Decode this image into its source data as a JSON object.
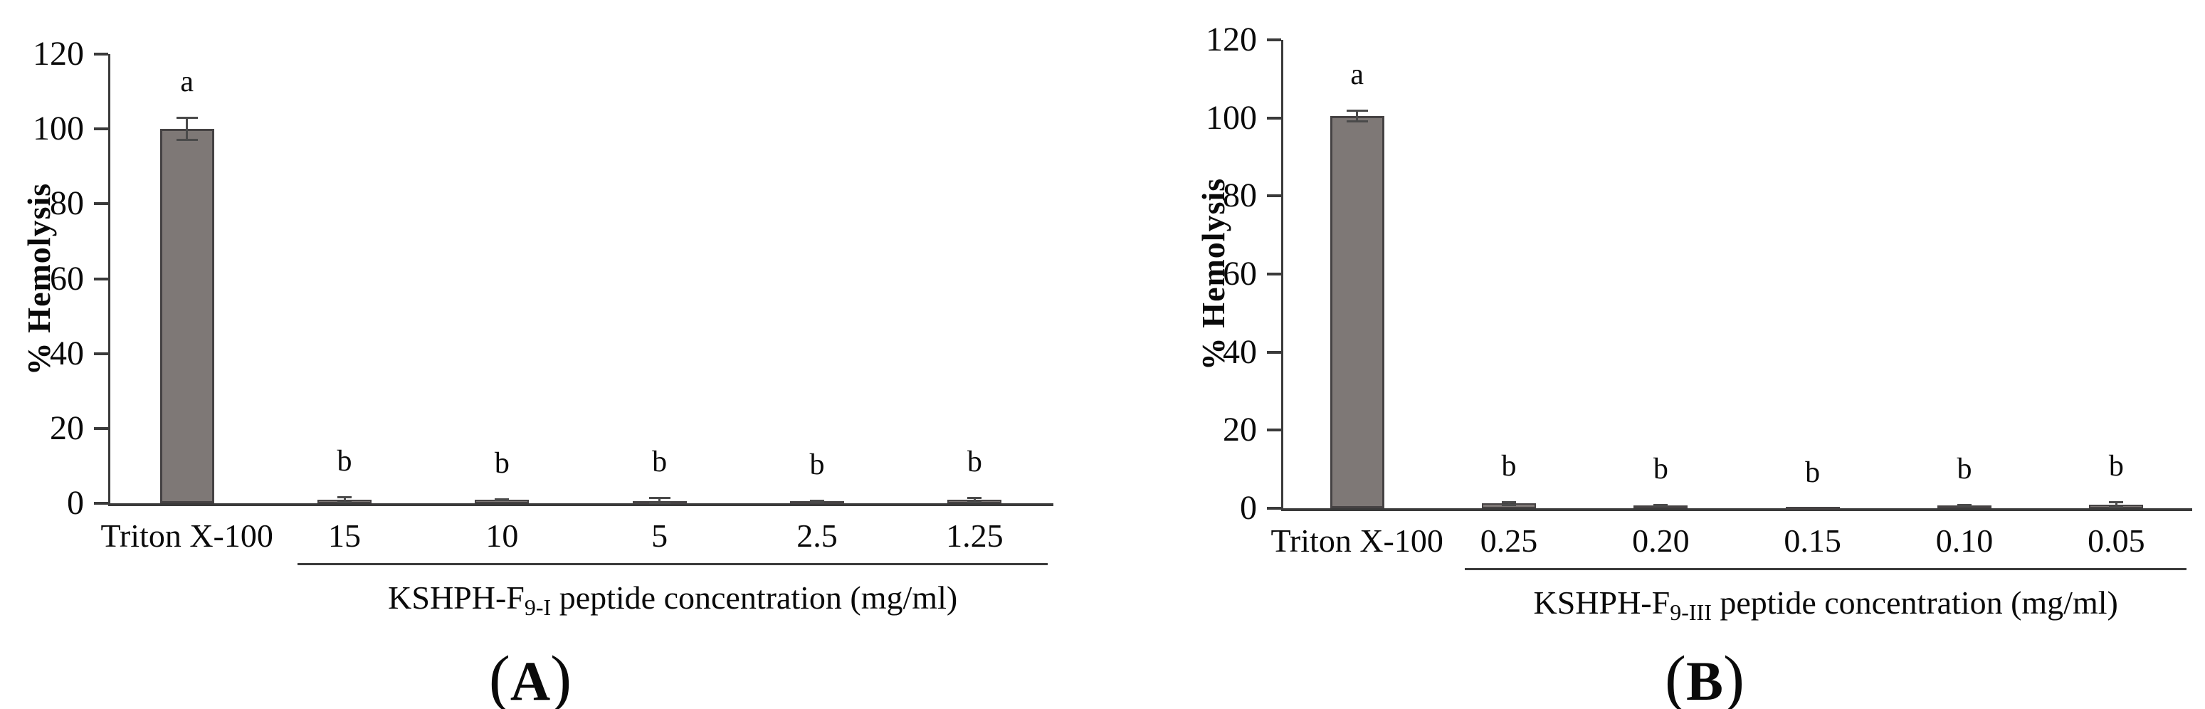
{
  "figure": {
    "background": "#ffffff",
    "text_color": "#0a0a0a"
  },
  "chart_data": [
    {
      "type": "bar",
      "title": "",
      "panel_label": {
        "open": "(",
        "letter": "A",
        "close": ")"
      },
      "ylabel": "% Hemolysis",
      "xlabel": "",
      "ylim": [
        0,
        120
      ],
      "yticks": [
        0,
        20,
        40,
        60,
        80,
        100,
        120
      ],
      "grid": "off",
      "legend": "none",
      "categories": [
        "Triton X-100",
        "15",
        "10",
        "5",
        "2.5",
        "1.25"
      ],
      "values": [
        100,
        0.9,
        0.9,
        0.6,
        0.5,
        0.9
      ],
      "errors": [
        3.0,
        0.8,
        0.2,
        1.0,
        0.3,
        0.7
      ],
      "sig_letters": [
        "a",
        "b",
        "b",
        "b",
        "b",
        "b"
      ],
      "group_axis": {
        "prefix": "KSHPH-F",
        "subscript": "9-I",
        "suffix": " peptide concentration (mg/ml)",
        "applies_to": [
          "15",
          "10",
          "5",
          "2.5",
          "1.25"
        ]
      },
      "bar_color": "#7e7876",
      "bar_border_color": "#454243",
      "error_bar_color": "#4a4a4a",
      "axis_color": "#3a3a3a"
    },
    {
      "type": "bar",
      "title": "",
      "panel_label": {
        "open": "(",
        "letter": "B",
        "close": ")"
      },
      "ylabel": "% Hemolysis",
      "xlabel": "",
      "ylim": [
        0,
        120
      ],
      "yticks": [
        0,
        20,
        40,
        60,
        80,
        100,
        120
      ],
      "grid": "off",
      "legend": "none",
      "categories": [
        "Triton X-100",
        "0.25",
        "0.20",
        "0.15",
        "0.10",
        "0.05"
      ],
      "values": [
        100.5,
        1.2,
        0.8,
        0.05,
        0.7,
        0.9
      ],
      "errors": [
        1.5,
        0.5,
        0.2,
        0,
        0.2,
        0.7
      ],
      "sig_letters": [
        "a",
        "b",
        "b",
        "b",
        "b",
        "b"
      ],
      "group_axis": {
        "prefix": "KSHPH-F",
        "subscript": "9-III",
        "suffix": " peptide concentration (mg/ml)",
        "applies_to": [
          "0.25",
          "0.20",
          "0.15",
          "0.10",
          "0.05"
        ]
      },
      "bar_color": "#7e7876",
      "bar_border_color": "#454243",
      "error_bar_color": "#4a4a4a",
      "axis_color": "#3a3a3a"
    }
  ]
}
